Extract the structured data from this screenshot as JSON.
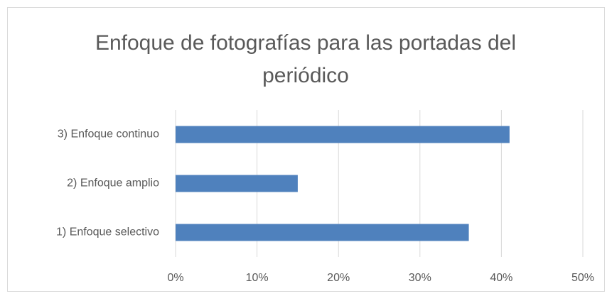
{
  "chart_data": {
    "type": "bar",
    "orientation": "horizontal",
    "title": "Enfoque de fotografías para las portadas del periódico",
    "categories": [
      "3) Enfoque continuo",
      "2) Enfoque amplio",
      "1) Enfoque selectivo"
    ],
    "values": [
      41,
      15,
      36
    ],
    "color": "#4f81bd",
    "xlim": [
      0,
      50
    ],
    "xticks": [
      {
        "value": 0,
        "label": "0%"
      },
      {
        "value": 10,
        "label": "10%"
      },
      {
        "value": 20,
        "label": "20%"
      },
      {
        "value": 30,
        "label": "30%"
      },
      {
        "value": 40,
        "label": "40%"
      },
      {
        "value": 50,
        "label": "50%"
      }
    ],
    "grid": true
  }
}
